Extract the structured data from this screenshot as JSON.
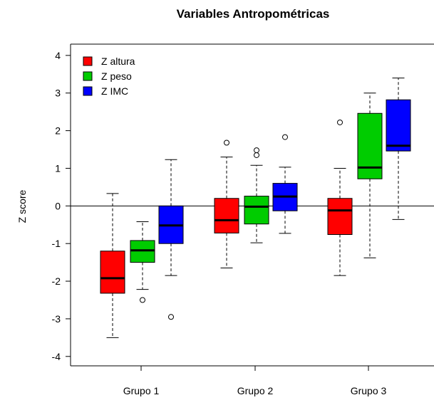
{
  "chart_data": {
    "type": "box",
    "title": "Variables Antropométricas",
    "xlabel": "",
    "ylabel": "Z score",
    "ylim": [
      -4.25,
      4.3
    ],
    "yticks": [
      4,
      3,
      2,
      1,
      0,
      -1,
      -2,
      -3,
      -4
    ],
    "reference_line_y": 0,
    "categories": [
      "Grupo 1",
      "Grupo 2",
      "Grupo 3"
    ],
    "legend_position": "top-left",
    "series": [
      {
        "name": "Z altura",
        "color": "#ff0000",
        "boxes": [
          {
            "whisker_low": -3.5,
            "q1": -2.32,
            "median": -1.92,
            "q3": -1.2,
            "whisker_high": 0.33,
            "outliers": []
          },
          {
            "whisker_low": -1.65,
            "q1": -0.72,
            "median": -0.38,
            "q3": 0.2,
            "whisker_high": 1.3,
            "outliers": [
              1.68
            ]
          },
          {
            "whisker_low": -1.85,
            "q1": -0.76,
            "median": -0.12,
            "q3": 0.2,
            "whisker_high": 1.0,
            "outliers": [
              2.22
            ]
          }
        ]
      },
      {
        "name": "Z peso",
        "color": "#00cc00",
        "boxes": [
          {
            "whisker_low": -2.22,
            "q1": -1.5,
            "median": -1.18,
            "q3": -0.92,
            "whisker_high": -0.42,
            "outliers": [
              -2.5
            ]
          },
          {
            "whisker_low": -0.98,
            "q1": -0.48,
            "median": -0.02,
            "q3": 0.26,
            "whisker_high": 1.08,
            "outliers": [
              1.35,
              1.48
            ]
          },
          {
            "whisker_low": -1.38,
            "q1": 0.72,
            "median": 1.02,
            "q3": 2.46,
            "whisker_high": 3.0,
            "outliers": []
          }
        ]
      },
      {
        "name": "Z IMC",
        "color": "#0000ff",
        "boxes": [
          {
            "whisker_low": -1.85,
            "q1": -1.0,
            "median": -0.52,
            "q3": 0.0,
            "whisker_high": 1.23,
            "outliers": [
              -2.95
            ]
          },
          {
            "whisker_low": -0.73,
            "q1": -0.13,
            "median": 0.25,
            "q3": 0.6,
            "whisker_high": 1.03,
            "outliers": [
              1.83
            ]
          },
          {
            "whisker_low": -0.36,
            "q1": 1.46,
            "median": 1.6,
            "q3": 2.82,
            "whisker_high": 3.4,
            "outliers": []
          }
        ]
      }
    ]
  }
}
